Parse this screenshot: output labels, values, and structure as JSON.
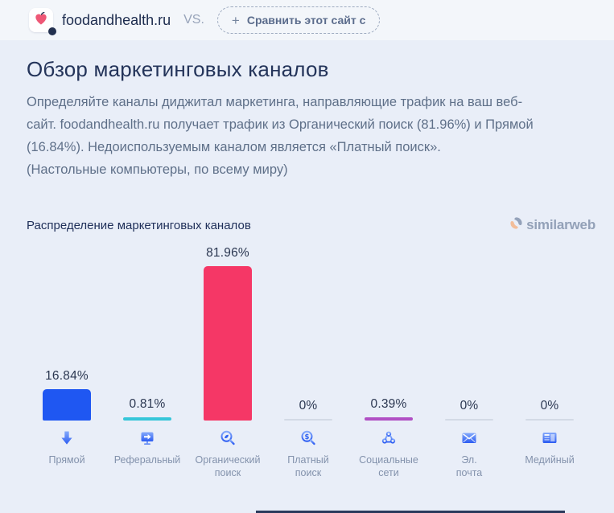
{
  "topbar": {
    "site_name": "foodandhealth.ru",
    "vs_label": "VS.",
    "compare_button_label": "Сравнить этот сайт с",
    "plus_glyph": "+"
  },
  "overview": {
    "title": "Обзор маркетинговых каналов",
    "description": "Определяйте каналы диджитал маркетинга, направляющие трафик на ваш веб-\nсайт. foodandhealth.ru получает трафик из Органический поиск (81.96%) и Прямой\n(16.84%). Недоиспользуемым каналом является «Платный поиск».\n(Настольные компьютеры, по всему миру)"
  },
  "branding": {
    "logo_text": "similarweb",
    "logo_icon": "similarweb-swirl-icon",
    "logo_colors": {
      "swirl_gray": "#94a2ba",
      "swirl_peach": "#f2bd9a"
    }
  },
  "chart_data": {
    "type": "bar",
    "title": "Распределение маркетинговых каналов",
    "categories": [
      "Прямой",
      "Реферальный",
      "Органический поиск",
      "Платный поиск",
      "Социальные сети",
      "Эл. почта",
      "Медийный"
    ],
    "category_labels": [
      "Прямой",
      "Реферальный",
      "Органический\nпоиск",
      "Платный\nпоиск",
      "Социальные\nсети",
      "Эл.\nпочта",
      "Медийный"
    ],
    "values": [
      16.84,
      0.81,
      81.96,
      0,
      0.39,
      0,
      0
    ],
    "value_labels": [
      "16.84%",
      "0.81%",
      "81.96%",
      "0%",
      "0.39%",
      "0%",
      "0%"
    ],
    "bar_colors": [
      "#1f57f2",
      "#36c6d9",
      "#f53766",
      "#d3dae6",
      "#b04fc4",
      "#d3dae6",
      "#d3dae6"
    ],
    "icons": [
      "direct-arrow-icon",
      "referral-monitor-icon",
      "organic-search-icon",
      "paid-search-icon",
      "social-networks-icon",
      "email-icon",
      "display-ads-icon"
    ],
    "ylabel": "",
    "xlabel": "",
    "ylim": [
      0,
      100
    ],
    "grid": false,
    "legend": "none"
  }
}
